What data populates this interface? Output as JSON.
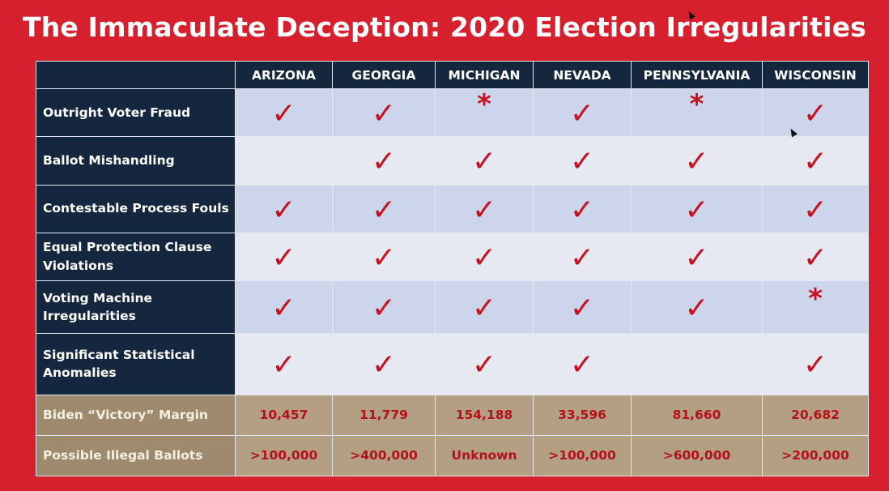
{
  "title": "The Immaculate Deception: 2020 Election Irregularities",
  "states": [
    "ARIZONA",
    "GEORGIA",
    "MICHIGAN",
    "NEVADA",
    "PENNSYLVANIA",
    "WISCONSIN"
  ],
  "symbols": {
    "check": "✓",
    "star": "*"
  },
  "colors": {
    "background": "#d7202e",
    "header": "#15273f",
    "mark": "#c8101f",
    "gold": "#b39f82"
  },
  "rows": [
    {
      "label": "Outright Voter Fraud",
      "marks": [
        "check",
        "check",
        "star",
        "check",
        "star",
        "check"
      ]
    },
    {
      "label": "Ballot Mishandling",
      "marks": [
        "",
        "check",
        "check",
        "check",
        "check",
        "check"
      ]
    },
    {
      "label": "Contestable Process Fouls",
      "marks": [
        "check",
        "check",
        "check",
        "check",
        "check",
        "check"
      ]
    },
    {
      "label": "Equal Protection Clause Violations",
      "marks": [
        "check",
        "check",
        "check",
        "check",
        "check",
        "check"
      ]
    },
    {
      "label": "Voting Machine Irregularities",
      "marks": [
        "check",
        "check",
        "check",
        "check",
        "check",
        "star"
      ]
    },
    {
      "label": "Significant Statistical Anomalies",
      "marks": [
        "check",
        "check",
        "check",
        "check",
        "",
        "check"
      ]
    }
  ],
  "margin_row": {
    "label": "Biden “Victory” Margin",
    "values": [
      "10,457",
      "11,779",
      "154,188",
      "33,596",
      "81,660",
      "20,682"
    ]
  },
  "ballots_row": {
    "label": "Possible Illegal Ballots",
    "values": [
      ">100,000",
      ">400,000",
      "Unknown",
      ">100,000",
      ">600,000",
      ">200,000"
    ]
  }
}
